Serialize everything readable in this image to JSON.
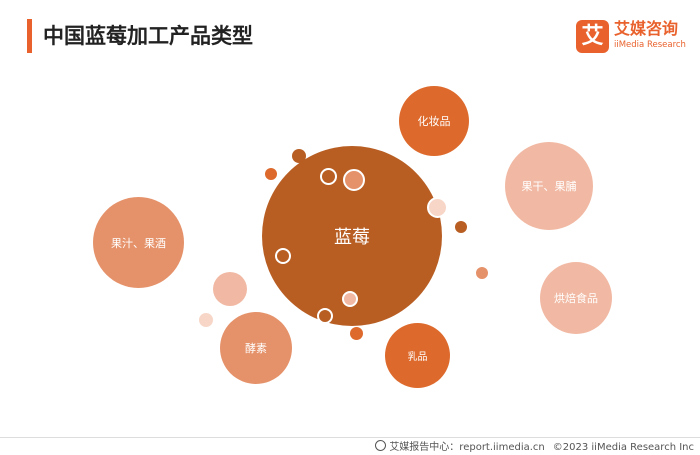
{
  "header": {
    "title": "中国蓝莓加工产品类型"
  },
  "logo": {
    "mark": "艾",
    "name_cn": "艾媒咨询",
    "name_en": "iiMedia Research"
  },
  "diagram": {
    "center": "蓝莓",
    "products": [
      "化妆品",
      "果干、果脯",
      "烘焙食品",
      "乳品",
      "酵素",
      "果汁、果酒"
    ]
  },
  "colors": {
    "accent": "#e9622d",
    "center": "#b85e23",
    "dark_orange": "#dd6a2c",
    "mid_orange": "#e5926a",
    "light_peach": "#f1b9a3"
  },
  "footer": {
    "source": "艾媒报告中心：report.iimedia.cn",
    "copyright": "©2023  iiMedia Research  Inc"
  }
}
